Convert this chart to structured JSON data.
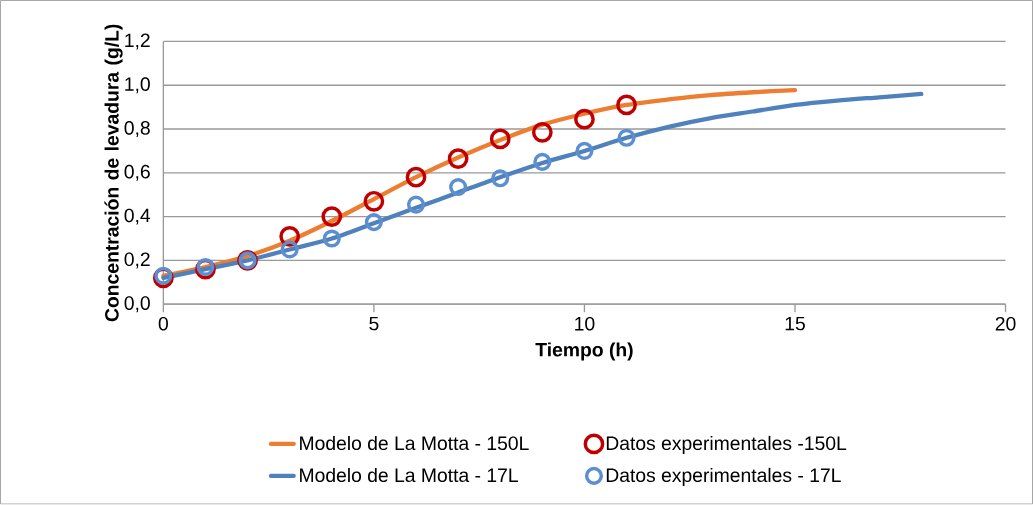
{
  "chart_data": {
    "type": "line",
    "xlabel": "Tiempo (h)",
    "ylabel": "Concentración de levadura (g/L)",
    "xlim": [
      0,
      20
    ],
    "xticks": [
      0,
      5,
      10,
      15,
      20
    ],
    "ylim": [
      0,
      1.2
    ],
    "yticks": [
      {
        "value": 0,
        "label": "0,0"
      },
      {
        "value": 0.2,
        "label": "0,2"
      },
      {
        "value": 0.4,
        "label": "0,4"
      },
      {
        "value": 0.6,
        "label": "0,6"
      },
      {
        "value": 0.8,
        "label": "0,8"
      },
      {
        "value": 1.0,
        "label": "1,0"
      },
      {
        "value": 1.2,
        "label": "1,2"
      }
    ],
    "grid": "y",
    "legend": "bottom",
    "series": [
      {
        "name": "Modelo de La Motta - 150L",
        "marker": "none",
        "color": "#ed7d31",
        "x": [
          0,
          1,
          2,
          3,
          4,
          5,
          6,
          7,
          8,
          9,
          10,
          11,
          12,
          13,
          14,
          15
        ],
        "values": [
          0.13,
          0.17,
          0.22,
          0.29,
          0.38,
          0.48,
          0.58,
          0.67,
          0.75,
          0.82,
          0.87,
          0.91,
          0.935,
          0.955,
          0.968,
          0.978
        ]
      },
      {
        "name": "Datos experimentales -150L",
        "type": "scatter",
        "marker": "circle",
        "color": "#c00000",
        "x": [
          0,
          1,
          2,
          3,
          4,
          5,
          6,
          7,
          8,
          9,
          10,
          11
        ],
        "values": [
          0.12,
          0.16,
          0.2,
          0.31,
          0.4,
          0.47,
          0.58,
          0.665,
          0.755,
          0.785,
          0.845,
          0.91
        ]
      },
      {
        "name": "Modelo de La Motta - 17L",
        "marker": "none",
        "color": "#4f81bd",
        "x": [
          0,
          1,
          2,
          3,
          4,
          5,
          6,
          7,
          8,
          9,
          10,
          11,
          12,
          13,
          14,
          15,
          16,
          17,
          18
        ],
        "values": [
          0.12,
          0.16,
          0.2,
          0.25,
          0.3,
          0.37,
          0.44,
          0.51,
          0.58,
          0.645,
          0.7,
          0.76,
          0.81,
          0.85,
          0.88,
          0.91,
          0.93,
          0.945,
          0.96
        ]
      },
      {
        "name": "Datos experimentales - 17L",
        "type": "scatter",
        "marker": "circle",
        "color": "#5b8fd0",
        "x": [
          0,
          1,
          2,
          3,
          4,
          5,
          6,
          7,
          8,
          9,
          10,
          11
        ],
        "values": [
          0.13,
          0.17,
          0.2,
          0.25,
          0.3,
          0.375,
          0.455,
          0.535,
          0.575,
          0.65,
          0.7,
          0.76
        ]
      }
    ]
  }
}
